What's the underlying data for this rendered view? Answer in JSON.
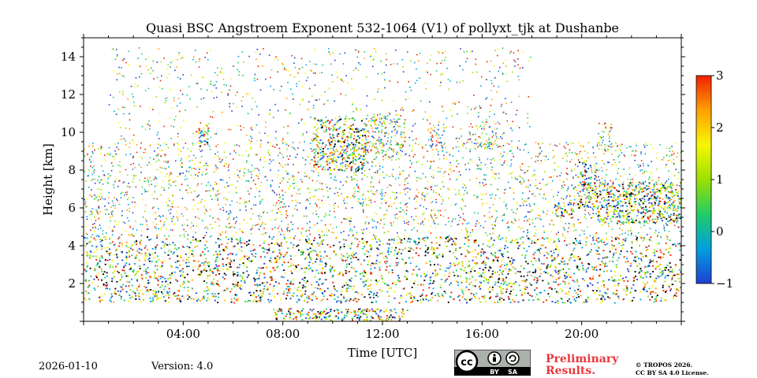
{
  "chart_data": {
    "type": "heatmap",
    "title": "Quasi BSC Angstroem Exponent 532-1064 (V1) of pollyxt_tjk at Dushanbe",
    "xlabel": "Time [UTC]",
    "ylabel": "Height [km]",
    "xlim_hours": [
      0,
      24
    ],
    "ylim_km": [
      0,
      15
    ],
    "x_ticks": [
      {
        "value": 4,
        "label": "04:00"
      },
      {
        "value": 8,
        "label": "08:00"
      },
      {
        "value": 12,
        "label": "12:00"
      },
      {
        "value": 16,
        "label": "16:00"
      },
      {
        "value": 20,
        "label": "20:00"
      }
    ],
    "y_ticks": [
      {
        "value": 2,
        "label": "2"
      },
      {
        "value": 4,
        "label": "4"
      },
      {
        "value": 6,
        "label": "6"
      },
      {
        "value": 8,
        "label": "8"
      },
      {
        "value": 10,
        "label": "10"
      },
      {
        "value": 12,
        "label": "12"
      },
      {
        "value": 14,
        "label": "14"
      }
    ],
    "colorbar": {
      "min": -1,
      "max": 3,
      "ticks": [
        {
          "value": 3,
          "label": "3"
        },
        {
          "value": 2,
          "label": "2"
        },
        {
          "value": 1,
          "label": "1"
        },
        {
          "value": 0,
          "label": "0"
        },
        {
          "value": -1,
          "label": "−1"
        }
      ],
      "colors": [
        "#1f3fd0",
        "#00a0e0",
        "#22cc66",
        "#9be000",
        "#f7f700",
        "#ffa000",
        "#f02000"
      ]
    },
    "features": [
      {
        "name": "noise-lower-layer",
        "t_start": 0.0,
        "t_end": 24.0,
        "h_low": 1.0,
        "h_high": 4.5,
        "density": 0.9
      },
      {
        "name": "noise-mid-layer",
        "t_start": 0.0,
        "t_end": 24.0,
        "h_low": 4.5,
        "h_high": 9.5,
        "density": 0.35
      },
      {
        "name": "noise-upper-layer",
        "t_start": 1.0,
        "t_end": 18.0,
        "h_low": 9.5,
        "h_high": 14.5,
        "density": 0.12
      },
      {
        "name": "cirrus-0445",
        "t_start": 4.5,
        "t_end": 5.0,
        "h_low": 9.3,
        "h_high": 10.5,
        "density": 0.8
      },
      {
        "name": "cirrus-0930-1130",
        "t_start": 9.2,
        "t_end": 11.3,
        "h_low": 8.0,
        "h_high": 10.8,
        "density": 0.8
      },
      {
        "name": "cirrus-1130-1300",
        "t_start": 11.3,
        "t_end": 12.9,
        "h_low": 8.9,
        "h_high": 11.0,
        "density": 0.7
      },
      {
        "name": "cirrus-1400",
        "t_start": 13.8,
        "t_end": 14.5,
        "h_low": 9.2,
        "h_high": 10.5,
        "density": 0.6
      },
      {
        "name": "cirrus-1530-1650",
        "t_start": 15.4,
        "t_end": 16.8,
        "h_low": 9.2,
        "h_high": 10.6,
        "density": 0.55
      },
      {
        "name": "cloud-1900-1930",
        "t_start": 18.9,
        "t_end": 19.7,
        "h_low": 5.5,
        "h_high": 6.3,
        "density": 0.8
      },
      {
        "name": "cloud-1950-2030",
        "t_start": 19.8,
        "t_end": 20.6,
        "h_low": 6.0,
        "h_high": 8.5,
        "density": 0.8
      },
      {
        "name": "cloud-2030-2130",
        "t_start": 20.6,
        "t_end": 21.4,
        "h_low": 5.3,
        "h_high": 7.4,
        "density": 0.85
      },
      {
        "name": "cloud-2130-2400",
        "t_start": 21.4,
        "t_end": 24.0,
        "h_low": 5.2,
        "h_high": 7.4,
        "density": 0.95
      },
      {
        "name": "cirrus-2030-2100",
        "t_start": 20.6,
        "t_end": 21.2,
        "h_low": 9.0,
        "h_high": 10.6,
        "density": 0.6
      },
      {
        "name": "near-ground-0750-1300",
        "t_start": 7.6,
        "t_end": 13.0,
        "h_low": 0.0,
        "h_high": 0.7,
        "density": 0.9
      }
    ]
  },
  "footer": {
    "date": "2026-01-10",
    "version": "Version: 4.0",
    "preliminary_line1": "Preliminary",
    "preliminary_line2": "Results.",
    "copyright_line1": "© TROPOS 2026.",
    "copyright_line2": "CC BY SA 4.0 License.",
    "badge_cc": "cc",
    "badge_by": "BY",
    "badge_sa": "SA"
  }
}
